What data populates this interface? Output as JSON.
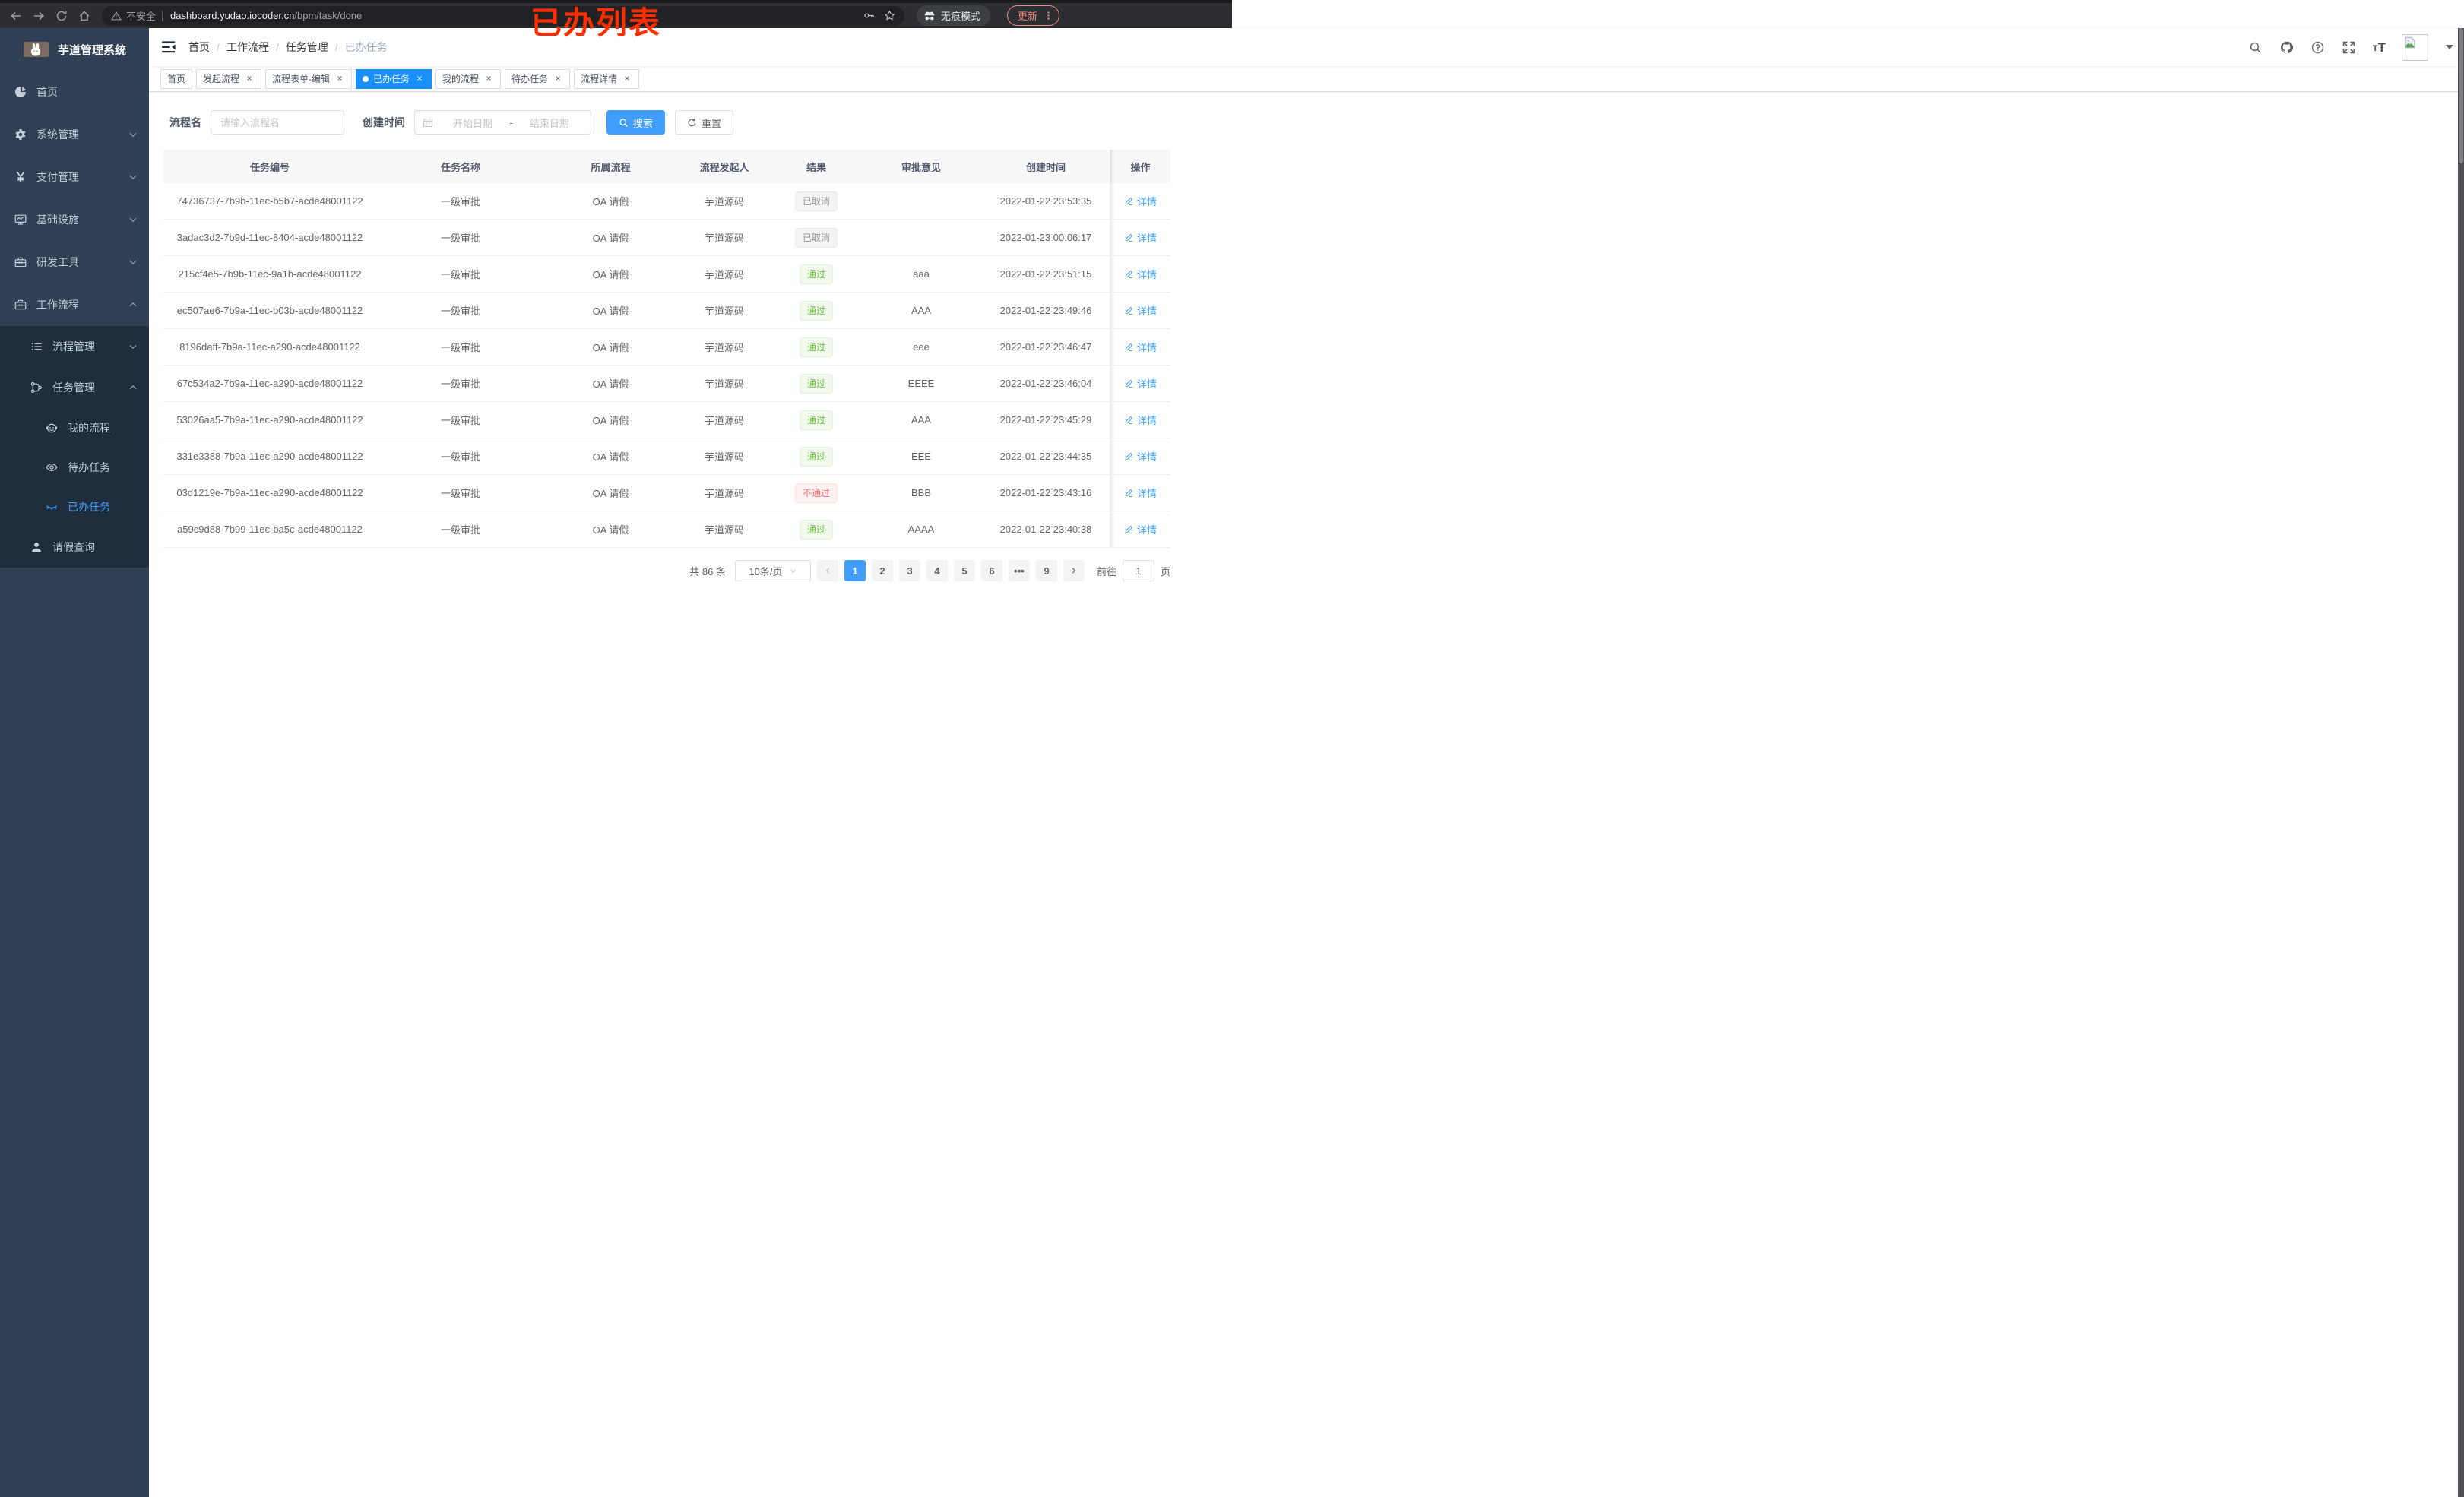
{
  "browser": {
    "security_label": "不安全",
    "url_host": "dashboard.yudao.iocoder.cn",
    "url_path": "/bpm/task/done",
    "incognito_label": "无痕模式",
    "update_label": "更新"
  },
  "annotation": {
    "text": "已办列表",
    "color": "#ff2d00"
  },
  "sidebar": {
    "title": "芋道管理系统",
    "menu": [
      {
        "label": "首页",
        "icon": "dashboard",
        "level": 1,
        "grouped": false,
        "chevron": null,
        "active": false
      },
      {
        "label": "系统管理",
        "icon": "gear",
        "level": 1,
        "grouped": false,
        "chevron": "down",
        "active": false
      },
      {
        "label": "支付管理",
        "icon": "yen",
        "level": 1,
        "grouped": false,
        "chevron": "down",
        "active": false
      },
      {
        "label": "基础设施",
        "icon": "monitor",
        "level": 1,
        "grouped": false,
        "chevron": "down",
        "active": false
      },
      {
        "label": "研发工具",
        "icon": "toolbox",
        "level": 1,
        "grouped": false,
        "chevron": "down",
        "active": false
      },
      {
        "label": "工作流程",
        "icon": "toolbox",
        "level": 1,
        "grouped": false,
        "chevron": "up",
        "active": false
      },
      {
        "label": "流程管理",
        "icon": "list",
        "level": 2,
        "grouped": true,
        "chevron": "down",
        "active": false
      },
      {
        "label": "任务管理",
        "icon": "tree",
        "level": 2,
        "grouped": true,
        "chevron": "up",
        "active": false
      },
      {
        "label": "我的流程",
        "icon": "robot",
        "level": 3,
        "grouped": true,
        "chevron": null,
        "active": false
      },
      {
        "label": "待办任务",
        "icon": "eye",
        "level": 3,
        "grouped": true,
        "chevron": null,
        "active": false
      },
      {
        "label": "已办任务",
        "icon": "eye-closed",
        "level": 3,
        "grouped": true,
        "chevron": null,
        "active": true
      },
      {
        "label": "请假查询",
        "icon": "user",
        "level": 2,
        "grouped": true,
        "chevron": null,
        "active": false
      }
    ]
  },
  "navbar": {
    "breadcrumb": [
      "首页",
      "工作流程",
      "任务管理",
      "已办任务"
    ]
  },
  "tabs": [
    {
      "label": "首页",
      "closable": false,
      "active": false
    },
    {
      "label": "发起流程",
      "closable": true,
      "active": false
    },
    {
      "label": "流程表单-编辑",
      "closable": true,
      "active": false
    },
    {
      "label": "已办任务",
      "closable": true,
      "active": true
    },
    {
      "label": "我的流程",
      "closable": true,
      "active": false
    },
    {
      "label": "待办任务",
      "closable": true,
      "active": false
    },
    {
      "label": "流程详情",
      "closable": true,
      "active": false
    }
  ],
  "filters": {
    "name_label": "流程名",
    "name_placeholder": "请输入流程名",
    "time_label": "创建时间",
    "start_placeholder": "开始日期",
    "range_separator": "-",
    "end_placeholder": "结束日期",
    "search_label": "搜索",
    "reset_label": "重置"
  },
  "table": {
    "columns": [
      "任务编号",
      "任务名称",
      "所属流程",
      "流程发起人",
      "结果",
      "审批意见",
      "创建时间",
      "操作"
    ],
    "action_label": "详情",
    "rows": [
      {
        "id": "74736737-7b9b-11ec-b5b7-acde48001122",
        "name": "一级审批",
        "process": "OA 请假",
        "starter": "芋道源码",
        "result": "已取消",
        "result_type": "info",
        "comment": "",
        "time": "2022-01-22 23:53:35"
      },
      {
        "id": "3adac3d2-7b9d-11ec-8404-acde48001122",
        "name": "一级审批",
        "process": "OA 请假",
        "starter": "芋道源码",
        "result": "已取消",
        "result_type": "info",
        "comment": "",
        "time": "2022-01-23 00:06:17"
      },
      {
        "id": "215cf4e5-7b9b-11ec-9a1b-acde48001122",
        "name": "一级审批",
        "process": "OA 请假",
        "starter": "芋道源码",
        "result": "通过",
        "result_type": "success",
        "comment": "aaa",
        "time": "2022-01-22 23:51:15"
      },
      {
        "id": "ec507ae6-7b9a-11ec-b03b-acde48001122",
        "name": "一级审批",
        "process": "OA 请假",
        "starter": "芋道源码",
        "result": "通过",
        "result_type": "success",
        "comment": "AAA",
        "time": "2022-01-22 23:49:46"
      },
      {
        "id": "8196daff-7b9a-11ec-a290-acde48001122",
        "name": "一级审批",
        "process": "OA 请假",
        "starter": "芋道源码",
        "result": "通过",
        "result_type": "success",
        "comment": "eee",
        "time": "2022-01-22 23:46:47"
      },
      {
        "id": "67c534a2-7b9a-11ec-a290-acde48001122",
        "name": "一级审批",
        "process": "OA 请假",
        "starter": "芋道源码",
        "result": "通过",
        "result_type": "success",
        "comment": "EEEE",
        "time": "2022-01-22 23:46:04"
      },
      {
        "id": "53026aa5-7b9a-11ec-a290-acde48001122",
        "name": "一级审批",
        "process": "OA 请假",
        "starter": "芋道源码",
        "result": "通过",
        "result_type": "success",
        "comment": "AAA",
        "time": "2022-01-22 23:45:29"
      },
      {
        "id": "331e3388-7b9a-11ec-a290-acde48001122",
        "name": "一级审批",
        "process": "OA 请假",
        "starter": "芋道源码",
        "result": "通过",
        "result_type": "success",
        "comment": "EEE",
        "time": "2022-01-22 23:44:35"
      },
      {
        "id": "03d1219e-7b9a-11ec-a290-acde48001122",
        "name": "一级审批",
        "process": "OA 请假",
        "starter": "芋道源码",
        "result": "不通过",
        "result_type": "danger",
        "comment": "BBB",
        "time": "2022-01-22 23:43:16"
      },
      {
        "id": "a59c9d88-7b99-11ec-ba5c-acde48001122",
        "name": "一级审批",
        "process": "OA 请假",
        "starter": "芋道源码",
        "result": "通过",
        "result_type": "success",
        "comment": "AAAA",
        "time": "2022-01-22 23:40:38"
      }
    ]
  },
  "pagination": {
    "total": "共 86 条",
    "size": "10条/页",
    "pages": [
      "1",
      "2",
      "3",
      "4",
      "5",
      "6",
      "•••",
      "9"
    ],
    "active_page": "1",
    "goto_label": "前往",
    "goto_value": "1",
    "unit_label": "页"
  },
  "colors": {
    "primary": "#409eff",
    "tab_active": "#1890ff",
    "success": "#67c23a",
    "danger": "#f56c6c",
    "info": "#909399",
    "sidebar_bg": "#304156",
    "submenu_bg": "#1f2d3d"
  }
}
